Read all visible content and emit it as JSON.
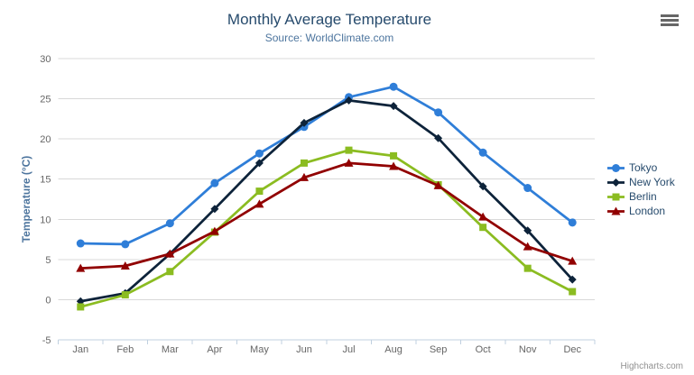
{
  "header": {
    "title": "Monthly Average Temperature",
    "subtitle": "Source: WorldClimate.com"
  },
  "chart_data": {
    "type": "line",
    "title": "Monthly Average Temperature",
    "subtitle": "Source: WorldClimate.com",
    "xlabel": "",
    "ylabel": "Temperature (°C)",
    "categories": [
      "Jan",
      "Feb",
      "Mar",
      "Apr",
      "May",
      "Jun",
      "Jul",
      "Aug",
      "Sep",
      "Oct",
      "Nov",
      "Dec"
    ],
    "ylim": [
      -5,
      30
    ],
    "y_ticks": [
      -5,
      0,
      5,
      10,
      15,
      20,
      25,
      30
    ],
    "grid": true,
    "legend_position": "right",
    "series": [
      {
        "name": "Tokyo",
        "marker": "circle",
        "color": "#2f7ed8",
        "values": [
          7.0,
          6.9,
          9.5,
          14.5,
          18.2,
          21.5,
          25.2,
          26.5,
          23.3,
          18.3,
          13.9,
          9.6
        ]
      },
      {
        "name": "New York",
        "marker": "diamond",
        "color": "#0d233a",
        "values": [
          -0.2,
          0.8,
          5.7,
          11.3,
          17.0,
          22.0,
          24.8,
          24.1,
          20.1,
          14.1,
          8.6,
          2.5
        ]
      },
      {
        "name": "Berlin",
        "marker": "square",
        "color": "#8bbc21",
        "values": [
          -0.9,
          0.6,
          3.5,
          8.4,
          13.5,
          17.0,
          18.6,
          17.9,
          14.3,
          9.0,
          3.9,
          1.0
        ]
      },
      {
        "name": "London",
        "marker": "triangle",
        "color": "#910000",
        "values": [
          3.9,
          4.2,
          5.7,
          8.5,
          11.9,
          15.2,
          17.0,
          16.6,
          14.2,
          10.3,
          6.6,
          4.8
        ]
      }
    ]
  },
  "credits": {
    "label": "Highcharts.com"
  },
  "export_menu": {
    "icon": "hamburger-icon"
  },
  "theme": {
    "background": "#ffffff",
    "title_color": "#274b6d",
    "subtitle_color": "#4d759e",
    "axis_label_color": "#666666",
    "axis_title_color": "#4d759e",
    "grid_color": "#d8d8d8",
    "axis_line_color": "#c0d0e0",
    "legend_text_color": "#274b6d",
    "credits_color": "#909090",
    "export_icon_color": "#666666"
  }
}
